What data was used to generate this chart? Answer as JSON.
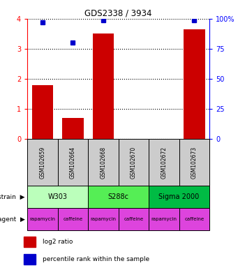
{
  "title": "GDS2338 / 3934",
  "samples": [
    "GSM102659",
    "GSM102664",
    "GSM102668",
    "GSM102670",
    "GSM102672",
    "GSM102673"
  ],
  "log2_ratio": [
    1.8,
    0.7,
    3.5,
    0.0,
    0.0,
    3.65
  ],
  "percentile_rank": [
    97,
    80,
    99,
    0,
    0,
    99
  ],
  "bar_color": "#cc0000",
  "dot_color": "#0000cc",
  "ylim_left": [
    0,
    4
  ],
  "ylim_right": [
    0,
    100
  ],
  "yticks_left": [
    0,
    1,
    2,
    3,
    4
  ],
  "yticks_right": [
    0,
    25,
    50,
    75,
    100
  ],
  "yticklabels_right": [
    "0",
    "25",
    "50",
    "75",
    "100%"
  ],
  "strains": [
    {
      "label": "W303",
      "span": [
        0,
        2
      ],
      "color": "#bbffbb"
    },
    {
      "label": "S288c",
      "span": [
        2,
        4
      ],
      "color": "#55ee55"
    },
    {
      "label": "Sigma 2000",
      "span": [
        4,
        6
      ],
      "color": "#00bb44"
    }
  ],
  "agents": [
    {
      "label": "rapamycin",
      "span": [
        0,
        1
      ],
      "color": "#dd44dd"
    },
    {
      "label": "caffeine",
      "span": [
        1,
        2
      ],
      "color": "#dd44dd"
    },
    {
      "label": "rapamycin",
      "span": [
        2,
        3
      ],
      "color": "#dd44dd"
    },
    {
      "label": "caffeine",
      "span": [
        3,
        4
      ],
      "color": "#dd44dd"
    },
    {
      "label": "rapamycin",
      "span": [
        4,
        5
      ],
      "color": "#dd44dd"
    },
    {
      "label": "caffeine",
      "span": [
        5,
        6
      ],
      "color": "#dd44dd"
    }
  ],
  "sample_box_color": "#cccccc",
  "legend_red_label": "log2 ratio",
  "legend_blue_label": "percentile rank within the sample"
}
